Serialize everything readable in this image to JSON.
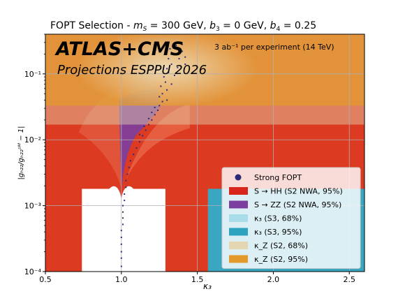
{
  "figure": {
    "title": "FOPT Selection - m_S = 300 GeV, b_3 = 0 GeV, b_4 = 0.25",
    "title_parts": {
      "prefix": "FOPT Selection - ",
      "ms_sym": "m",
      "ms_sub": "S",
      "ms_val": " = 300 GeV, ",
      "b3_sym": "b",
      "b3_sub": "3",
      "b3_val": " = 0 GeV, ",
      "b4_sym": "b",
      "b4_sub": "4",
      "b4_val": " = 0.25"
    },
    "banner": "ATLAS+CMS",
    "subbanner": "Projections ESPPU 2026",
    "lumi_note": "3 ab⁻¹  per experiment (14 TeV)"
  },
  "chart_data": {
    "type": "scatter",
    "title": "FOPT Selection - m_S = 300 GeV, b_3 = 0 GeV, b_4 = 0.25",
    "xlabel": "κ₃",
    "ylabel": "|g_HZZ/g_HZZ^SM − 1|",
    "ylabel_display": "|gₕ₂₂/gₕ₂₂ˢᴹ − 1|",
    "xlim": [
      0.5,
      2.6
    ],
    "ylim": [
      0.0001,
      0.4
    ],
    "xscale": "linear",
    "yscale": "log",
    "grid": true,
    "xticks": [
      0.5,
      1.0,
      1.5,
      2.0,
      2.5
    ],
    "xtick_labels": [
      "0.5",
      "1.0",
      "1.5",
      "2.0",
      "2.5"
    ],
    "yticks": [
      0.0001,
      0.001,
      0.01,
      0.1
    ],
    "ytick_labels": [
      "10⁻⁴",
      "10⁻³",
      "10⁻²",
      "10⁻¹"
    ],
    "legend_position": "lower-right",
    "legend": [
      {
        "label": "Strong FOPT",
        "kind": "marker",
        "color": "#2e2a7a"
      },
      {
        "label": "S → HH  (S2 NWA, 95%)",
        "kind": "patch",
        "color": "#d9261c"
      },
      {
        "label": "S → ZZ  (S2 NWA, 95%)",
        "kind": "patch",
        "color": "#7b3fa0"
      },
      {
        "label": "κ₃  (S3, 68%)",
        "kind": "patch",
        "color": "#a9dce9"
      },
      {
        "label": "κ₃  (S3, 95%)",
        "kind": "patch",
        "color": "#2ea3bf"
      },
      {
        "label": "κ_Z  (S2, 68%)",
        "kind": "patch",
        "color": "#e3d6b0"
      },
      {
        "label": "κ_Z  (S2, 95%)",
        "kind": "patch",
        "color": "#e39a2b"
      }
    ],
    "bands": {
      "kappaZ_95_y_above": 0.033,
      "kappaZ_68_y_above": 0.017,
      "kappa3_68_outside_x": [
        0.74,
        1.29
      ],
      "kappa3_95_outside_x": [
        0.5,
        1.57
      ],
      "hh_y_above": 0.0018,
      "zz_y_above_at_x1": 0.0015
    },
    "series": [
      {
        "name": "Strong FOPT",
        "points": [
          [
            1.0,
            0.00012
          ],
          [
            1.0,
            0.00016
          ],
          [
            1.0,
            0.0002
          ],
          [
            1.0,
            0.00026
          ],
          [
            1.0,
            0.00033
          ],
          [
            1.0,
            0.00042
          ],
          [
            1.01,
            0.00052
          ],
          [
            1.01,
            0.00065
          ],
          [
            1.01,
            0.0008
          ],
          [
            1.01,
            0.001
          ],
          [
            1.02,
            0.0012
          ],
          [
            1.02,
            0.0015
          ],
          [
            1.03,
            0.0019
          ],
          [
            1.03,
            0.0024
          ],
          [
            1.04,
            0.003
          ],
          [
            1.05,
            0.0038
          ],
          [
            1.06,
            0.0048
          ],
          [
            1.08,
            0.006
          ],
          [
            1.1,
            0.0075
          ],
          [
            1.12,
            0.0093
          ],
          [
            1.14,
            0.0115
          ],
          [
            1.16,
            0.014
          ],
          [
            1.18,
            0.017
          ],
          [
            1.2,
            0.02
          ],
          [
            1.22,
            0.024
          ],
          [
            1.24,
            0.028
          ],
          [
            1.25,
            0.033
          ],
          [
            1.27,
            0.038
          ],
          [
            1.3,
            0.04
          ],
          [
            1.25,
            0.045
          ],
          [
            1.27,
            0.05
          ],
          [
            1.3,
            0.057
          ],
          [
            1.26,
            0.065
          ],
          [
            1.29,
            0.075
          ],
          [
            1.33,
            0.07
          ],
          [
            1.28,
            0.09
          ],
          [
            1.31,
            0.105
          ],
          [
            1.35,
            0.095
          ],
          [
            1.3,
            0.12
          ],
          [
            1.33,
            0.14
          ],
          [
            1.37,
            0.125
          ],
          [
            1.31,
            0.17
          ],
          [
            1.34,
            0.2
          ],
          [
            1.38,
            0.17
          ],
          [
            1.32,
            0.24
          ],
          [
            1.36,
            0.27
          ],
          [
            1.4,
            0.22
          ],
          [
            1.4,
            0.28
          ],
          [
            1.42,
            0.18
          ],
          [
            1.42,
            0.14
          ],
          [
            1.12,
            0.012
          ],
          [
            1.15,
            0.016
          ],
          [
            1.18,
            0.021
          ],
          [
            1.2,
            0.026
          ],
          [
            1.22,
            0.031
          ]
        ]
      }
    ]
  }
}
